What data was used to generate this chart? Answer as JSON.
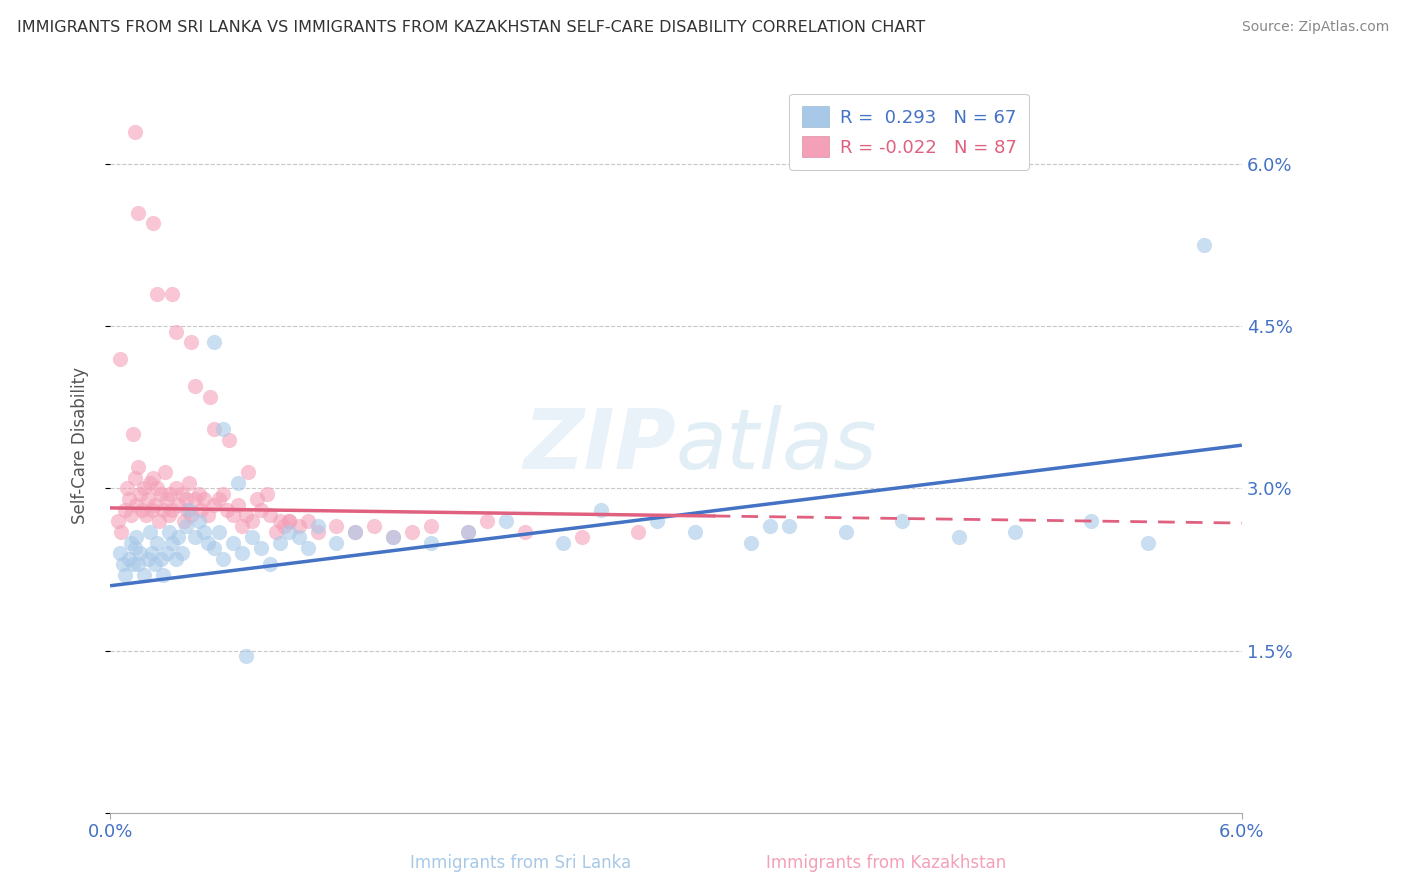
{
  "title": "IMMIGRANTS FROM SRI LANKA VS IMMIGRANTS FROM KAZAKHSTAN SELF-CARE DISABILITY CORRELATION CHART",
  "source": "Source: ZipAtlas.com",
  "ylabel": "Self-Care Disability",
  "x_range": [
    0.0,
    6.0
  ],
  "y_range": [
    0.0,
    6.8
  ],
  "y_ticks": [
    0.0,
    1.5,
    3.0,
    4.5,
    6.0
  ],
  "color_blue": "#a8c8e8",
  "color_pink": "#f4a0b8",
  "color_blue_dark": "#4472c4",
  "color_pink_dark": "#e06080",
  "color_text_blue": "#4472c4",
  "background_color": "#ffffff",
  "grid_color": "#c8c8c8",
  "sl_trend": [
    2.1,
    3.4
  ],
  "kz_trend": [
    2.82,
    2.68
  ],
  "sri_lanka_x": [
    0.05,
    0.07,
    0.08,
    0.1,
    0.11,
    0.12,
    0.13,
    0.14,
    0.15,
    0.16,
    0.18,
    0.2,
    0.21,
    0.22,
    0.24,
    0.25,
    0.27,
    0.28,
    0.3,
    0.31,
    0.33,
    0.35,
    0.36,
    0.38,
    0.4,
    0.42,
    0.45,
    0.47,
    0.5,
    0.52,
    0.55,
    0.58,
    0.6,
    0.65,
    0.7,
    0.75,
    0.8,
    0.85,
    0.9,
    0.95,
    1.0,
    1.05,
    1.1,
    1.2,
    1.3,
    1.5,
    1.7,
    1.9,
    2.1,
    2.4,
    2.6,
    2.9,
    3.1,
    3.4,
    3.6,
    3.9,
    4.2,
    4.5,
    4.8,
    5.2,
    5.5,
    3.5,
    0.6,
    0.55,
    0.68,
    0.72,
    5.8
  ],
  "sri_lanka_y": [
    2.4,
    2.3,
    2.2,
    2.35,
    2.5,
    2.3,
    2.45,
    2.55,
    2.3,
    2.4,
    2.2,
    2.35,
    2.6,
    2.4,
    2.3,
    2.5,
    2.35,
    2.2,
    2.4,
    2.6,
    2.5,
    2.35,
    2.55,
    2.4,
    2.65,
    2.8,
    2.55,
    2.7,
    2.6,
    2.5,
    2.45,
    2.6,
    2.35,
    2.5,
    2.4,
    2.55,
    2.45,
    2.3,
    2.5,
    2.6,
    2.55,
    2.45,
    2.65,
    2.5,
    2.6,
    2.55,
    2.5,
    2.6,
    2.7,
    2.5,
    2.8,
    2.7,
    2.6,
    2.5,
    2.65,
    2.6,
    2.7,
    2.55,
    2.6,
    2.7,
    2.5,
    2.65,
    3.55,
    4.35,
    3.05,
    1.45,
    5.25
  ],
  "kazakhstan_x": [
    0.04,
    0.06,
    0.08,
    0.09,
    0.1,
    0.11,
    0.12,
    0.13,
    0.14,
    0.15,
    0.16,
    0.17,
    0.18,
    0.19,
    0.2,
    0.21,
    0.22,
    0.23,
    0.24,
    0.25,
    0.26,
    0.27,
    0.28,
    0.29,
    0.3,
    0.31,
    0.32,
    0.33,
    0.35,
    0.36,
    0.38,
    0.39,
    0.4,
    0.41,
    0.42,
    0.43,
    0.45,
    0.47,
    0.48,
    0.5,
    0.52,
    0.55,
    0.58,
    0.6,
    0.62,
    0.65,
    0.68,
    0.7,
    0.72,
    0.75,
    0.78,
    0.8,
    0.85,
    0.88,
    0.9,
    0.92,
    0.95,
    1.0,
    1.05,
    1.1,
    1.2,
    1.3,
    1.4,
    1.5,
    1.6,
    1.7,
    1.9,
    2.0,
    2.2,
    2.5,
    0.05,
    0.15,
    0.25,
    0.35,
    0.45,
    0.55,
    0.13,
    0.23,
    0.33,
    0.43,
    0.53,
    0.63,
    0.73,
    0.83,
    0.95,
    2.8
  ],
  "kazakhstan_y": [
    2.7,
    2.6,
    2.8,
    3.0,
    2.9,
    2.75,
    3.5,
    3.1,
    2.85,
    3.2,
    2.95,
    2.8,
    3.0,
    2.75,
    2.9,
    3.05,
    2.8,
    3.1,
    2.85,
    3.0,
    2.7,
    2.95,
    2.8,
    3.15,
    2.9,
    2.75,
    2.95,
    2.8,
    3.0,
    2.85,
    2.95,
    2.7,
    2.9,
    2.8,
    3.05,
    2.75,
    2.9,
    2.95,
    2.8,
    2.9,
    2.75,
    2.85,
    2.9,
    2.95,
    2.8,
    2.75,
    2.85,
    2.65,
    2.75,
    2.7,
    2.9,
    2.8,
    2.75,
    2.6,
    2.7,
    2.65,
    2.7,
    2.65,
    2.7,
    2.6,
    2.65,
    2.6,
    2.65,
    2.55,
    2.6,
    2.65,
    2.6,
    2.7,
    2.6,
    2.55,
    4.2,
    5.55,
    4.8,
    4.45,
    3.95,
    3.55,
    6.3,
    5.45,
    4.8,
    4.35,
    3.85,
    3.45,
    3.15,
    2.95,
    2.7,
    2.6
  ]
}
